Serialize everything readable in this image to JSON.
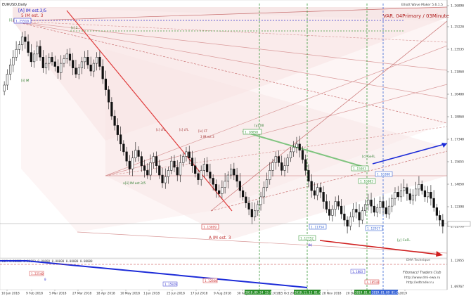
{
  "window": {
    "symbol_label": "EURUSD,Daily",
    "header_note": "Elliott Wave Maker 5.6.1.5"
  },
  "chart_title": "VAR. 04Primary / 03Minute",
  "indicator_label": "WLM 0.00000 0.00000 0.00000 0.00000 0.00000 0.00000",
  "price_axis": [
    "1.26900",
    "1.25220",
    "1.23540",
    "1.21860",
    "1.20480",
    "1.18860",
    "1.17340",
    "1.15650",
    "1.14060",
    "1.12390",
    "1.11790",
    "1.10830"
  ],
  "price_axis_display": [
    "1.26890",
    "1.25220",
    "1.23535",
    "1.21860",
    "1.20480",
    "1.18860",
    "1.17340",
    "1.15655",
    "1.14050",
    "1.12398",
    "1.11790"
  ],
  "indicator_axis": [
    "1.12955",
    "1.09767"
  ],
  "time_axis": [
    "10 Jan 2018",
    "9 Feb 2018",
    "5 Mar 2018",
    "27 Mar 2018",
    "18 Apr 2018",
    "10 May 2018",
    "1 Jun 2018",
    "25 Jun 2018",
    "17 Jul 2018",
    "9 Aug 2018",
    "30 Aug 2018",
    "24 Sep 2018",
    "15 Oct 2018",
    "2018.10.29",
    "28 Nov 2018",
    "20 Dec 2018",
    "2019.01.",
    "10 Jan 2019",
    "2019"
  ],
  "wave_labels": [
    "[A] IM est.3/5",
    "5 IM est. 3",
    "[i] IM",
    "[c] 3",
    "x[ii] IM est.3/5",
    "A IM est. 3",
    "[c] cFL",
    "[iv] CT",
    "[y] XII",
    "[ii] IM",
    "[c] GeFL",
    "[y] CeFL",
    "[a] x",
    "(b)",
    "[c] cFL",
    "3 IM est 3"
  ],
  "price_boxes": [
    "1.25510",
    "1.13699",
    "1.18050",
    "1.15053",
    "1.16300",
    "1.12917",
    "1.16003",
    "1.12752",
    "1.11754"
  ],
  "indicator_boxes": [
    "1.22540",
    "0",
    "1.15929",
    "1.12860",
    "1.1803",
    "1.10510"
  ],
  "watermark": [
    "EMA Technique",
    "Fibonacci Traders Club",
    "http://www.dmi-ewa.ru",
    "http://edtrader.ru"
  ],
  "highlighted_dates": [
    "2018.09.24 13:00",
    "2018.11.13 01:00",
    "2019.01.09 01:00",
    "2019.01.09 01:00"
  ],
  "colors": {
    "bull": "#3b8c3b",
    "bear": "#c43030",
    "candle": "#111111",
    "bg": "#ffffff",
    "trend_red": "#e03c3c",
    "trend_green": "#6ab46a",
    "trend_blue": "#1c2bd8",
    "axis": "#808080",
    "highlight_green": "#2a8f2a",
    "highlight_blue": "#3a66d6"
  },
  "chart_data": {
    "type": "candlestick",
    "symbol": "EURUSD",
    "timeframe": "Daily",
    "x_range": [
      "2018-01-10",
      "2019-01-15"
    ],
    "y_range": [
      1.107,
      1.271
    ],
    "approx_closes": [
      1.218,
      1.225,
      1.231,
      1.236,
      1.241,
      1.244,
      1.249,
      1.246,
      1.239,
      1.233,
      1.238,
      1.243,
      1.236,
      1.229,
      1.232,
      1.236,
      1.233,
      1.23,
      1.226,
      1.232,
      1.235,
      1.238,
      1.234,
      1.229,
      1.225,
      1.229,
      1.233,
      1.236,
      1.231,
      1.227,
      1.232,
      1.236,
      1.23,
      1.222,
      1.215,
      1.207,
      1.198,
      1.192,
      1.186,
      1.18,
      1.175,
      1.169,
      1.164,
      1.171,
      1.176,
      1.172,
      1.166,
      1.163,
      1.16,
      1.168,
      1.172,
      1.166,
      1.16,
      1.155,
      1.159,
      1.163,
      1.169,
      1.165,
      1.16,
      1.168,
      1.172,
      1.175,
      1.171,
      1.166,
      1.161,
      1.157,
      1.163,
      1.167,
      1.162,
      1.158,
      1.154,
      1.15,
      1.148,
      1.152,
      1.156,
      1.16,
      1.164,
      1.16,
      1.156,
      1.15,
      1.146,
      1.142,
      1.138,
      1.133,
      1.137,
      1.141,
      1.146,
      1.152,
      1.157,
      1.163,
      1.168,
      1.172,
      1.168,
      1.163,
      1.166,
      1.171,
      1.175,
      1.178,
      1.18,
      1.176,
      1.17,
      1.163,
      1.156,
      1.15,
      1.147,
      1.152,
      1.149,
      1.143,
      1.138,
      1.134,
      1.138,
      1.143,
      1.14,
      1.135,
      1.131,
      1.127,
      1.133,
      1.138,
      1.136,
      1.131,
      1.137,
      1.141,
      1.144,
      1.14,
      1.136,
      1.139,
      1.143,
      1.139,
      1.135,
      1.14,
      1.145,
      1.149,
      1.146,
      1.15,
      1.152,
      1.148,
      1.144,
      1.147,
      1.151,
      1.154,
      1.15,
      1.146,
      1.149,
      1.145,
      1.139,
      1.134,
      1.131,
      1.127
    ]
  }
}
